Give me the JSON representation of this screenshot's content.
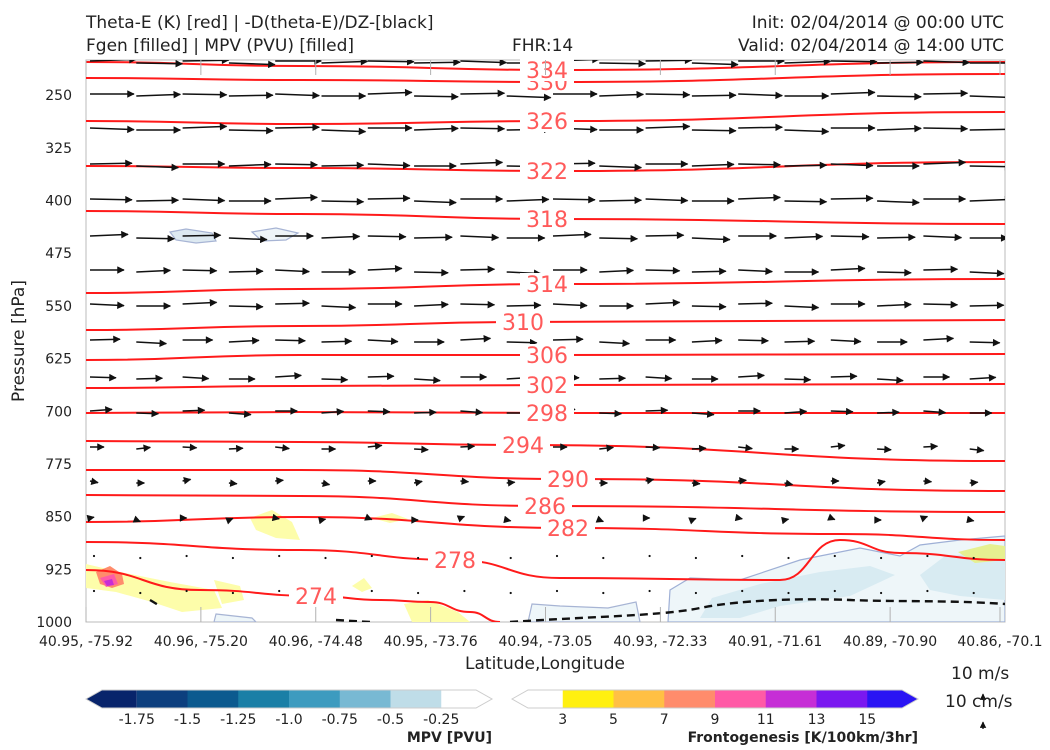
{
  "header": {
    "title_line1": "Theta-E (K) [red] | -D(theta-E)/DZ-[black]",
    "title_line2": "Fgen [filled] | MPV (PVU) [filled]",
    "fhr": "FHR:14",
    "init": "Init: 02/04/2014 @ 00:00 UTC",
    "valid": "Valid: 02/04/2014 @ 14:00 UTC"
  },
  "chart_data": {
    "type": "cross-section",
    "xlabel": "Latitude,Longitude",
    "ylabel": "Pressure [hPa]",
    "ylim": [
      1000,
      200
    ],
    "y_ticks": [
      250,
      325,
      400,
      475,
      550,
      625,
      700,
      775,
      850,
      925,
      1000
    ],
    "x_ticks": [
      "40.95, -75.92",
      "40.96, -75.20",
      "40.96, -74.48",
      "40.95, -73.76",
      "40.94, -73.05",
      "40.93, -72.33",
      "40.91, -71.61",
      "40.89, -70.90",
      "40.86, -70.1"
    ],
    "theta_e_contours": [
      {
        "value": 274,
        "label": "274"
      },
      {
        "value": 278,
        "label": "278"
      },
      {
        "value": 282,
        "label": "282"
      },
      {
        "value": 286,
        "label": "286"
      },
      {
        "value": 290,
        "label": "290"
      },
      {
        "value": 294,
        "label": "294"
      },
      {
        "value": 298,
        "label": "298"
      },
      {
        "value": 302,
        "label": "302"
      },
      {
        "value": 306,
        "label": "306"
      },
      {
        "value": 310,
        "label": "310"
      },
      {
        "value": 314,
        "label": "314"
      },
      {
        "value": 318,
        "label": "318"
      },
      {
        "value": 322,
        "label": "322"
      },
      {
        "value": 326,
        "label": "326"
      },
      {
        "value": 330,
        "label": "330"
      },
      {
        "value": 334,
        "label": "334"
      }
    ],
    "wind_reference": {
      "horizontal": "10 m/s",
      "vertical": "10 cm/s"
    },
    "colors": {
      "theta_e": "#ff1a1a",
      "theta_e_label": "#ff5a5a",
      "wind": "#111111"
    }
  },
  "mpv_colorbar": {
    "title": "MPV [PVU]",
    "labels": [
      "-1.75",
      "-1.5",
      "-1.25",
      "-1.0",
      "-0.75",
      "-0.5",
      "-0.25"
    ],
    "colors": [
      "#08246b",
      "#0d3f7e",
      "#0c5a8f",
      "#1a7fa6",
      "#3d9bbf",
      "#78b9d3",
      "#bfdde8",
      "#ffffff"
    ]
  },
  "fgen_colorbar": {
    "title": "Frontogenesis [K/100km/3hr]",
    "labels": [
      "3",
      "5",
      "7",
      "9",
      "11",
      "13",
      "15"
    ],
    "colors": [
      "#ffffff",
      "#fff010",
      "#ffc044",
      "#ff8c6c",
      "#ff5aa6",
      "#c62ed6",
      "#7a18f0",
      "#2a14f4"
    ]
  }
}
